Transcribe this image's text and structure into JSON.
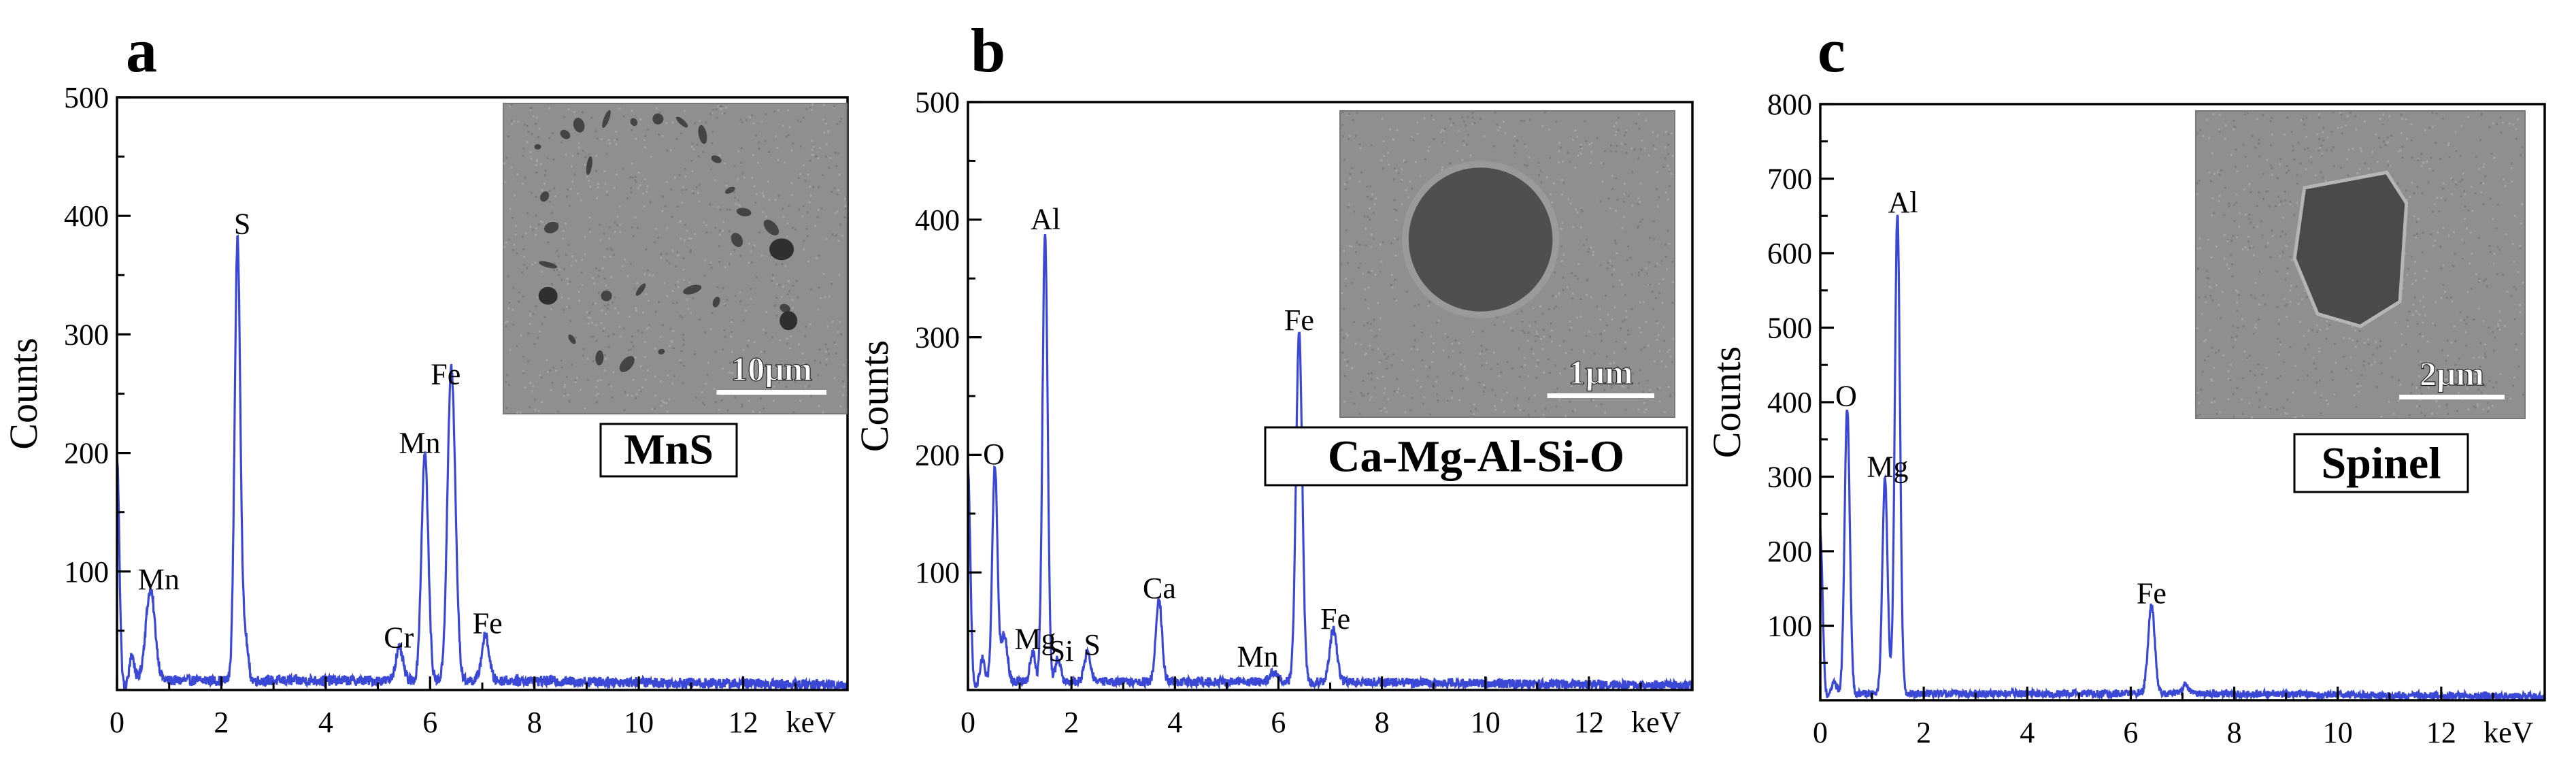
{
  "figure": {
    "panels": [
      "a",
      "b",
      "c"
    ]
  },
  "colors": {
    "spectrum": "#3b48d6",
    "axis": "#000000",
    "inset_bg": "#8f8f8f",
    "inset_dark": "#444444",
    "scale_bar": "#ffffff"
  },
  "chart_data": [
    {
      "type": "line",
      "panel_label": "a",
      "title": "",
      "xlabel": "keV",
      "ylabel": "Counts",
      "xlim": [
        0,
        14
      ],
      "ylim": [
        0,
        500
      ],
      "x_ticks": [
        0,
        2,
        4,
        6,
        8,
        10,
        12
      ],
      "y_ticks": [
        100,
        200,
        300,
        400,
        500
      ],
      "minor_x_step": 1,
      "minor_y_step": 50,
      "baseline": 8,
      "peaks": [
        {
          "x": 0.0,
          "y": 195,
          "w": 0.045
        },
        {
          "x": 0.28,
          "y": 22,
          "w": 0.05
        },
        {
          "x": 0.64,
          "y": 76,
          "w": 0.09
        },
        {
          "x": 2.31,
          "y": 371,
          "w": 0.055
        },
        {
          "x": 2.46,
          "y": 35,
          "w": 0.05
        },
        {
          "x": 5.41,
          "y": 27,
          "w": 0.07
        },
        {
          "x": 5.9,
          "y": 192,
          "w": 0.065
        },
        {
          "x": 6.4,
          "y": 250,
          "w": 0.07
        },
        {
          "x": 6.49,
          "y": 40,
          "w": 0.06
        },
        {
          "x": 7.06,
          "y": 38,
          "w": 0.07
        }
      ],
      "annotations": [
        {
          "text": "Mn",
          "x": 0.8,
          "y": 85
        },
        {
          "text": "S",
          "x": 2.4,
          "y": 385
        },
        {
          "text": "Cr",
          "x": 5.4,
          "y": 36
        },
        {
          "text": "Mn",
          "x": 5.8,
          "y": 200
        },
        {
          "text": "Fe",
          "x": 6.3,
          "y": 258
        },
        {
          "text": "Fe",
          "x": 7.1,
          "y": 48
        }
      ],
      "inset": {
        "label": "MnS",
        "scale": "10μm",
        "style": "inclusions"
      }
    },
    {
      "type": "line",
      "panel_label": "b",
      "title": "",
      "xlabel": "keV",
      "ylabel": "Counts",
      "xlim": [
        0,
        14
      ],
      "ylim": [
        0,
        500
      ],
      "x_ticks": [
        0,
        2,
        4,
        6,
        8,
        10,
        12
      ],
      "y_ticks": [
        100,
        200,
        300,
        400,
        500
      ],
      "minor_x_step": 1,
      "minor_y_step": 50,
      "baseline": 7,
      "peaks": [
        {
          "x": 0.0,
          "y": 188,
          "w": 0.045
        },
        {
          "x": 0.27,
          "y": 20,
          "w": 0.05
        },
        {
          "x": 0.52,
          "y": 185,
          "w": 0.05
        },
        {
          "x": 0.7,
          "y": 40,
          "w": 0.06
        },
        {
          "x": 1.25,
          "y": 25,
          "w": 0.05
        },
        {
          "x": 1.49,
          "y": 382,
          "w": 0.05
        },
        {
          "x": 1.74,
          "y": 20,
          "w": 0.05
        },
        {
          "x": 2.31,
          "y": 25,
          "w": 0.06
        },
        {
          "x": 3.69,
          "y": 70,
          "w": 0.06
        },
        {
          "x": 5.9,
          "y": 8,
          "w": 0.07
        },
        {
          "x": 6.4,
          "y": 298,
          "w": 0.06
        },
        {
          "x": 7.06,
          "y": 44,
          "w": 0.07
        }
      ],
      "annotations": [
        {
          "text": "O",
          "x": 0.5,
          "y": 192
        },
        {
          "text": "Al",
          "x": 1.5,
          "y": 392
        },
        {
          "text": "Mg",
          "x": 1.3,
          "y": 35
        },
        {
          "text": "Si",
          "x": 1.8,
          "y": 25
        },
        {
          "text": "S",
          "x": 2.4,
          "y": 30
        },
        {
          "text": "Ca",
          "x": 3.7,
          "y": 78
        },
        {
          "text": "Mn",
          "x": 5.6,
          "y": 20
        },
        {
          "text": "Fe",
          "x": 6.4,
          "y": 306
        },
        {
          "text": "Fe",
          "x": 7.1,
          "y": 52
        }
      ],
      "inset": {
        "label": "Ca-Mg-Al-Si-O",
        "scale": "1μm",
        "style": "sphere"
      }
    },
    {
      "type": "line",
      "panel_label": "c",
      "title": "",
      "xlabel": "keV",
      "ylabel": "Counts",
      "xlim": [
        0,
        14
      ],
      "ylim": [
        0,
        800
      ],
      "x_ticks": [
        0,
        2,
        4,
        6,
        8,
        10,
        12
      ],
      "y_ticks": [
        100,
        200,
        300,
        400,
        500,
        600,
        700,
        800
      ],
      "minor_x_step": 1,
      "minor_y_step": 50,
      "baseline": 9,
      "peaks": [
        {
          "x": 0.0,
          "y": 225,
          "w": 0.045
        },
        {
          "x": 0.26,
          "y": 18,
          "w": 0.05
        },
        {
          "x": 0.52,
          "y": 385,
          "w": 0.05
        },
        {
          "x": 1.25,
          "y": 287,
          "w": 0.05
        },
        {
          "x": 1.49,
          "y": 645,
          "w": 0.05
        },
        {
          "x": 6.4,
          "y": 118,
          "w": 0.065
        },
        {
          "x": 7.06,
          "y": 12,
          "w": 0.06
        }
      ],
      "annotations": [
        {
          "text": "O",
          "x": 0.5,
          "y": 395
        },
        {
          "text": "Al",
          "x": 1.6,
          "y": 655
        },
        {
          "text": "Mg",
          "x": 1.3,
          "y": 300
        },
        {
          "text": "Fe",
          "x": 6.4,
          "y": 130
        }
      ],
      "inset": {
        "label": "Spinel",
        "scale": "2μm",
        "style": "polygon"
      }
    }
  ]
}
